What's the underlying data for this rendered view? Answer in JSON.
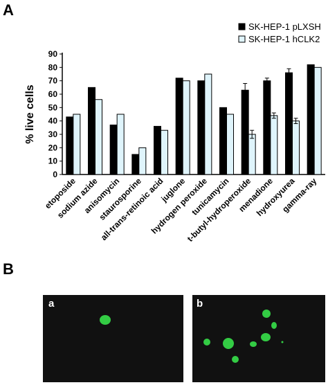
{
  "panel_a_label": "A",
  "panel_b_label": "B",
  "chart_data": {
    "type": "bar",
    "title": "",
    "xlabel": "",
    "ylabel": "% live cells",
    "ylim": [
      0,
      90
    ],
    "yticks": [
      0,
      10,
      20,
      30,
      40,
      50,
      60,
      70,
      80,
      90
    ],
    "categories": [
      "etoposide",
      "sodium azide",
      "anisomycin",
      "staurosporine",
      "all-trans-retinoic acid",
      "juglone",
      "hydrogen peroxide",
      "tunicamycin",
      "t-butyl-hydroperoxide",
      "menadione",
      "hydroxyurea",
      "gamma-ray"
    ],
    "series": [
      {
        "name": "SK-HEP-1 pLXSH",
        "color": "#000000",
        "values": [
          43,
          65,
          37,
          15,
          36,
          72,
          70,
          50,
          63,
          70,
          76,
          82
        ],
        "errors": [
          0,
          0,
          0,
          0,
          0,
          0,
          0,
          0,
          5,
          2,
          3,
          0
        ]
      },
      {
        "name": "SK-HEP-1 hCLK2",
        "color": "#dff4fb",
        "values": [
          45,
          56,
          45,
          20,
          33,
          70,
          75,
          45,
          30,
          44,
          40,
          80
        ],
        "errors": [
          0,
          0,
          0,
          0,
          0,
          0,
          0,
          0,
          3,
          2,
          2,
          0
        ]
      }
    ],
    "legend_position": "top-right",
    "grid": false
  },
  "micrographs": {
    "background": "#111111",
    "cell_color": "#33cc44",
    "panels": [
      {
        "label": "a"
      },
      {
        "label": "b"
      }
    ]
  }
}
